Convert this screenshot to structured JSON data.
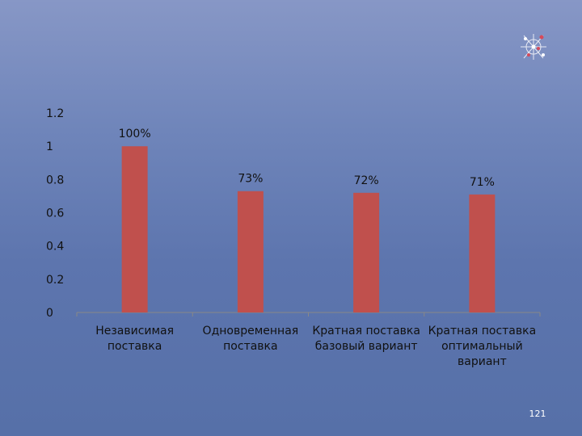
{
  "slide": {
    "page_number": "121",
    "logo_icon": "network-logo-icon"
  },
  "colors": {
    "bar": "#c0504d",
    "axis": "#888888",
    "text": "#111111"
  },
  "chart_data": {
    "type": "bar",
    "title": "",
    "xlabel": "",
    "ylabel": "",
    "ylim": [
      0,
      1.2
    ],
    "yticks": [
      0,
      0.2,
      0.4,
      0.6,
      0.8,
      1,
      1.2
    ],
    "ytick_labels": [
      "0",
      "0.2",
      "0.4",
      "0.6",
      "0.8",
      "1",
      "1.2"
    ],
    "grid": false,
    "legend": "none",
    "categories": [
      [
        "Независимая",
        "поставка"
      ],
      [
        "Одновременная",
        "поставка"
      ],
      [
        "Кратная поставка",
        "базовый вариант"
      ],
      [
        "Кратная поставка",
        "оптимальный",
        "вариант"
      ]
    ],
    "values": [
      1.0,
      0.73,
      0.72,
      0.71
    ],
    "data_labels": [
      "100%",
      "73%",
      "72%",
      "71%"
    ]
  }
}
